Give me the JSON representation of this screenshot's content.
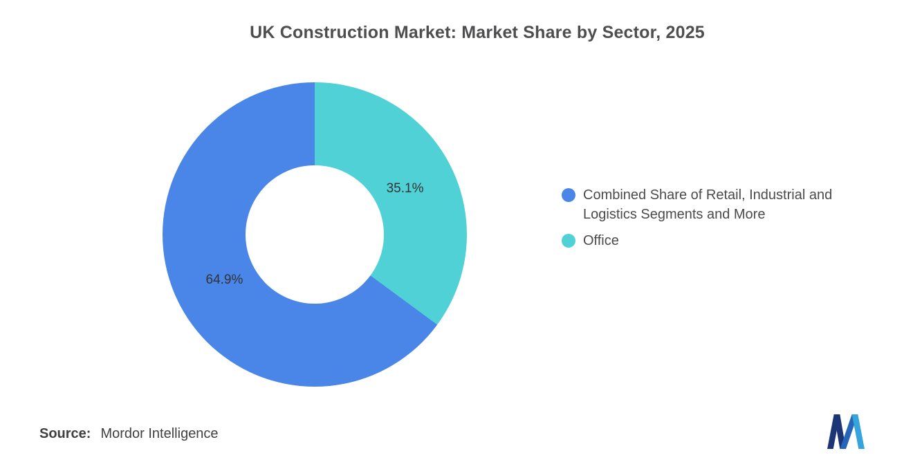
{
  "title": "UK Construction Market: Market Share by Sector, 2025",
  "chart_data": {
    "type": "pie",
    "subtype": "donut",
    "title": "UK Construction Market: Market Share by Sector, 2025",
    "direction": "counterclockwise",
    "start_angle": "top",
    "inner_radius_ratio": 0.455,
    "legend_position": "right",
    "data_label_color": "#333333",
    "slices": [
      {
        "label": "Combined Share of Retail, Industrial and Logistics Segments and More",
        "value": 64.9,
        "display": "64.9%",
        "color": "#4A86E8"
      },
      {
        "label": "Office",
        "value": 35.1,
        "display": "35.1%",
        "color": "#4FD1D6"
      }
    ]
  },
  "source": {
    "prefix": "Source:",
    "text": "Mordor Intelligence"
  },
  "logo": {
    "label": "mordor-intelligence-logo",
    "color_dark": "#1C3577",
    "color_mid": "#2566B8",
    "color_light": "#35A3DC"
  }
}
